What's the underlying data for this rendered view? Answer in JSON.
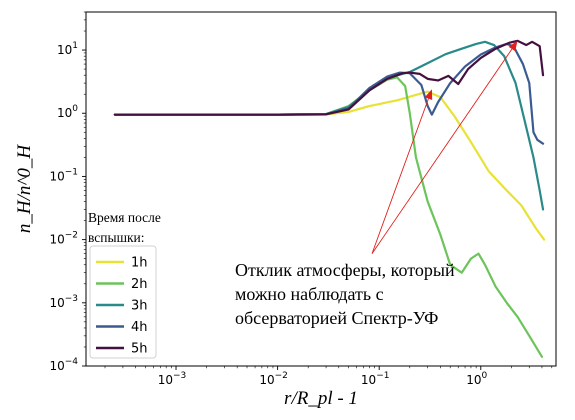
{
  "chart_data": {
    "type": "line",
    "title": "",
    "xlabel": "r/R_pl - 1",
    "ylabel": "n_H/n^0_H",
    "xscale": "log",
    "yscale": "log",
    "xlim": [
      0.00013,
      5.5
    ],
    "ylim": [
      0.0001,
      40
    ],
    "grid": false,
    "legend": {
      "title_line1": "Время после",
      "title_line2": "вспышки:",
      "placement": "bottom-left"
    },
    "x_ticks": [
      {
        "value": 0.001,
        "base": "10",
        "exp": "−3"
      },
      {
        "value": 0.01,
        "base": "10",
        "exp": "−2"
      },
      {
        "value": 0.1,
        "base": "10",
        "exp": "−1"
      },
      {
        "value": 1,
        "base": "10",
        "exp": "0"
      }
    ],
    "y_ticks": [
      {
        "value": 0.0001,
        "base": "10",
        "exp": "−4"
      },
      {
        "value": 0.001,
        "base": "10",
        "exp": "−3"
      },
      {
        "value": 0.01,
        "base": "10",
        "exp": "−2"
      },
      {
        "value": 0.1,
        "base": "10",
        "exp": "−1"
      },
      {
        "value": 1,
        "base": "10",
        "exp": "0"
      },
      {
        "value": 10,
        "base": "10",
        "exp": "1"
      }
    ],
    "series": [
      {
        "name": "1h",
        "color": "#e8e235",
        "points": [
          [
            0.00025,
            0.95
          ],
          [
            0.001,
            0.95
          ],
          [
            0.01,
            0.95
          ],
          [
            0.03,
            0.96
          ],
          [
            0.05,
            1.05
          ],
          [
            0.08,
            1.3
          ],
          [
            0.15,
            1.6
          ],
          [
            0.3,
            2.2
          ],
          [
            0.4,
            1.8
          ],
          [
            0.55,
            0.9
          ],
          [
            0.8,
            0.35
          ],
          [
            1.2,
            0.12
          ],
          [
            1.8,
            0.06
          ],
          [
            2.5,
            0.035
          ],
          [
            3.5,
            0.015
          ],
          [
            4.2,
            0.01
          ]
        ]
      },
      {
        "name": "2h",
        "color": "#6cc45b",
        "points": [
          [
            0.00025,
            0.95
          ],
          [
            0.001,
            0.95
          ],
          [
            0.01,
            0.95
          ],
          [
            0.03,
            0.97
          ],
          [
            0.05,
            1.3
          ],
          [
            0.08,
            2.3
          ],
          [
            0.12,
            3.4
          ],
          [
            0.15,
            3.7
          ],
          [
            0.18,
            2.7
          ],
          [
            0.2,
            1.0
          ],
          [
            0.23,
            0.2
          ],
          [
            0.3,
            0.04
          ],
          [
            0.4,
            0.012
          ],
          [
            0.5,
            0.004
          ],
          [
            0.65,
            0.003
          ],
          [
            0.8,
            0.005
          ],
          [
            0.95,
            0.006
          ],
          [
            1.1,
            0.004
          ],
          [
            1.4,
            0.0018
          ],
          [
            1.8,
            0.001
          ],
          [
            2.3,
            0.0006
          ],
          [
            3,
            0.0003
          ],
          [
            4,
            0.00014
          ]
        ]
      },
      {
        "name": "3h",
        "color": "#2a8a89",
        "points": [
          [
            0.00025,
            0.95
          ],
          [
            0.001,
            0.95
          ],
          [
            0.01,
            0.95
          ],
          [
            0.03,
            0.97
          ],
          [
            0.05,
            1.25
          ],
          [
            0.08,
            2.3
          ],
          [
            0.12,
            3.6
          ],
          [
            0.2,
            4.5
          ],
          [
            0.3,
            6.2
          ],
          [
            0.45,
            8.6
          ],
          [
            0.65,
            10.5
          ],
          [
            0.9,
            12.5
          ],
          [
            1.1,
            13.5
          ],
          [
            1.35,
            12
          ],
          [
            1.7,
            8
          ],
          [
            2.2,
            3
          ],
          [
            2.8,
            0.6
          ],
          [
            3.3,
            0.2
          ],
          [
            3.8,
            0.06
          ],
          [
            4.1,
            0.03
          ]
        ]
      },
      {
        "name": "4h",
        "color": "#3b5b91",
        "points": [
          [
            0.00025,
            0.95
          ],
          [
            0.001,
            0.95
          ],
          [
            0.01,
            0.95
          ],
          [
            0.03,
            0.96
          ],
          [
            0.05,
            1.2
          ],
          [
            0.08,
            2.5
          ],
          [
            0.12,
            3.8
          ],
          [
            0.16,
            4.4
          ],
          [
            0.2,
            4.3
          ],
          [
            0.26,
            2.8
          ],
          [
            0.3,
            1.3
          ],
          [
            0.33,
            0.95
          ],
          [
            0.38,
            1.5
          ],
          [
            0.5,
            3
          ],
          [
            0.7,
            5.5
          ],
          [
            1,
            8.5
          ],
          [
            1.4,
            11
          ],
          [
            1.8,
            12.5
          ],
          [
            2.1,
            11.5
          ],
          [
            2.6,
            6
          ],
          [
            3,
            3
          ],
          [
            3.3,
            0.5
          ],
          [
            3.6,
            0.38
          ],
          [
            4.1,
            0.33
          ]
        ]
      },
      {
        "name": "5h",
        "color": "#45103f",
        "points": [
          [
            0.00025,
            0.95
          ],
          [
            0.001,
            0.95
          ],
          [
            0.01,
            0.95
          ],
          [
            0.03,
            0.96
          ],
          [
            0.05,
            1.15
          ],
          [
            0.08,
            2.3
          ],
          [
            0.12,
            3.5
          ],
          [
            0.17,
            4.3
          ],
          [
            0.2,
            4.4
          ],
          [
            0.25,
            4.2
          ],
          [
            0.3,
            3.5
          ],
          [
            0.38,
            3.3
          ],
          [
            0.48,
            3.9
          ],
          [
            0.6,
            2.9
          ],
          [
            0.75,
            5
          ],
          [
            1,
            7.5
          ],
          [
            1.4,
            10.5
          ],
          [
            1.9,
            13
          ],
          [
            2.3,
            14
          ],
          [
            2.8,
            12
          ],
          [
            3.2,
            13.5
          ],
          [
            3.8,
            11.5
          ],
          [
            4.1,
            4
          ]
        ]
      }
    ],
    "annotation": {
      "line1": "Отклик атмосферы, который",
      "line2": "можно наблюдать с",
      "line3": "обсерваторией Спектр-УФ",
      "arrow_origin": [
        0.085,
        0.006
      ],
      "arrow_targets": [
        [
          0.33,
          2.4
        ],
        [
          2.3,
          14
        ]
      ],
      "color": "#e0201c"
    }
  }
}
